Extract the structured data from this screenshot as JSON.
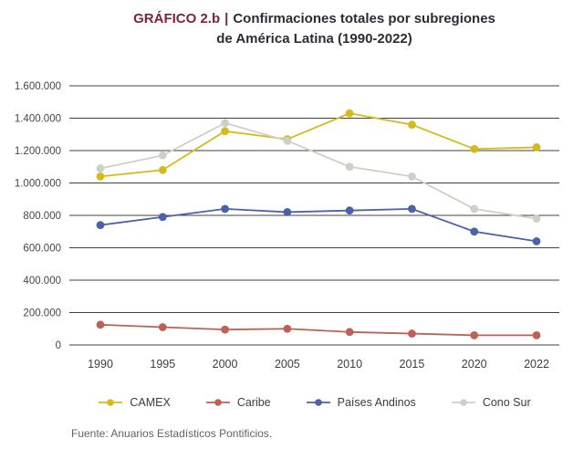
{
  "title": {
    "label": "GRÁFICO 2.b",
    "separator": "|",
    "line1_rest": "Confirmaciones totales por subregiones",
    "line2": "de América Latina (1990-2022)"
  },
  "source": "Fuente: Anuarios Estadísticos Pontificios.",
  "colors": {
    "title_accent": "#7d2243",
    "title_text": "#2c2c34",
    "grid": "#404040",
    "axis_text": "#45454d",
    "source_text": "#5f6368",
    "background": "#ffffff"
  },
  "chart_data": {
    "type": "line",
    "title": "GRÁFICO 2.b | Confirmaciones totales por subregiones de América Latina (1990-2022)",
    "categories": [
      "1990",
      "1995",
      "2000",
      "2005",
      "2010",
      "2015",
      "2020",
      "2022"
    ],
    "series": [
      {
        "name": "CAMEX",
        "color": "#d6ba1c",
        "values": [
          1040000,
          1080000,
          1320000,
          1270000,
          1430000,
          1360000,
          1210000,
          1220000
        ]
      },
      {
        "name": "Caribe",
        "color": "#bd6156",
        "values": [
          125000,
          110000,
          95000,
          100000,
          80000,
          70000,
          60000,
          60000
        ]
      },
      {
        "name": "Países Andinos",
        "color": "#4a62a7",
        "values": [
          740000,
          790000,
          840000,
          820000,
          830000,
          840000,
          700000,
          640000
        ]
      },
      {
        "name": "Cono Sur",
        "color": "#cbd2c5",
        "values": [
          1090000,
          1170000,
          1370000,
          1260000,
          1100000,
          1040000,
          840000,
          780000
        ]
      }
    ],
    "xlabel": "",
    "ylabel": "",
    "ylim": [
      0,
      1600000
    ],
    "ytick_step": 200000,
    "ytick_labels": [
      "0",
      "200.000",
      "400.000",
      "600.000",
      "800.000",
      "1.000.000",
      "1.200.000",
      "1.400.000",
      "1.600.000"
    ],
    "grid": "horizontal-only",
    "legend_position": "bottom"
  }
}
